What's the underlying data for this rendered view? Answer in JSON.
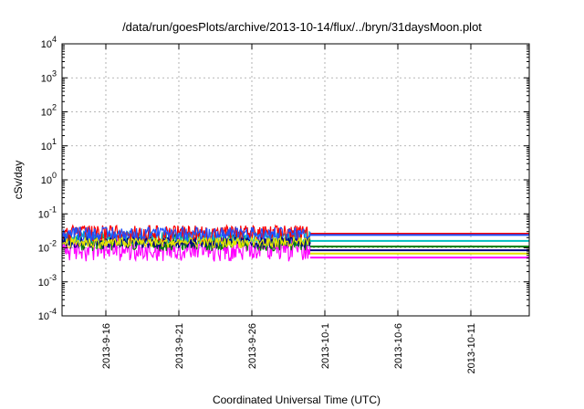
{
  "chart_data": {
    "type": "line",
    "title": "/data/run/goesPlots/archive/2013-10-14/flux/../bryn/31daysMoon.plot",
    "xlabel": "Coordinated Universal Time (UTC)",
    "ylabel": "cSv/day",
    "x_range": [
      "2013-09-13",
      "2013-10-15"
    ],
    "y_scale": "log",
    "ylim": [
      0.0001,
      10000
    ],
    "grid": true,
    "x_ticks": [
      {
        "date": "2013-09-16",
        "label": "2013-9-16"
      },
      {
        "date": "2013-09-21",
        "label": "2013-9-21"
      },
      {
        "date": "2013-09-26",
        "label": "2013-9-26"
      },
      {
        "date": "2013-10-01",
        "label": "2013-10-1"
      },
      {
        "date": "2013-10-06",
        "label": "2013-10-6"
      },
      {
        "date": "2013-10-11",
        "label": "2013-10-11"
      }
    ],
    "y_ticks": [
      {
        "value": 0.0001,
        "base": "10",
        "exp": "-4"
      },
      {
        "value": 0.001,
        "base": "10",
        "exp": "-3"
      },
      {
        "value": 0.01,
        "base": "10",
        "exp": "-2"
      },
      {
        "value": 0.1,
        "base": "10",
        "exp": "-1"
      },
      {
        "value": 1,
        "base": "10",
        "exp": "0"
      },
      {
        "value": 10,
        "base": "10",
        "exp": "1"
      },
      {
        "value": 100,
        "base": "10",
        "exp": "2"
      },
      {
        "value": 1000,
        "base": "10",
        "exp": "3"
      },
      {
        "value": 10000,
        "base": "10",
        "exp": "4"
      }
    ],
    "series": [
      {
        "color": "#ff00ff",
        "noisy_until": "2013-09-30",
        "noisy_range": [
          0.004,
          0.02
        ],
        "flat_value": 0.0052,
        "flat_from": "2013-09-30",
        "flat_to": "2013-10-15"
      },
      {
        "color": "#008000",
        "noisy_until": "2013-09-30",
        "noisy_range": [
          0.008,
          0.025
        ],
        "flat_value": 0.011,
        "flat_from": "2013-09-30",
        "flat_to": "2013-10-15"
      },
      {
        "color": "#00bfbf",
        "noisy_until": "2013-09-30",
        "noisy_range": [
          0.012,
          0.03
        ],
        "flat_value": 0.016,
        "flat_from": "2013-09-30",
        "flat_to": "2013-10-15"
      },
      {
        "color": "#ff0000",
        "noisy_until": "2013-09-30",
        "noisy_range": [
          0.015,
          0.045
        ],
        "flat_value": 0.026,
        "flat_from": "2013-09-30",
        "flat_to": "2013-10-15"
      },
      {
        "color": "#1e50ff",
        "noisy_until": "2013-09-30",
        "noisy_range": [
          0.015,
          0.04
        ],
        "flat_value": 0.024,
        "flat_from": "2013-09-30",
        "flat_to": "2013-10-15"
      },
      {
        "color": "#000080",
        "noisy_until": "2013-09-30",
        "noisy_range": [
          0.01,
          0.02
        ],
        "flat_value": 0.0085,
        "flat_from": "2013-09-30",
        "flat_to": "2013-10-15"
      },
      {
        "color": "#e6e600",
        "noisy_until": "2013-09-30",
        "noisy_range": [
          0.01,
          0.02
        ],
        "flat_value": 0.0068,
        "flat_from": "2013-09-30",
        "flat_to": "2013-10-15"
      }
    ]
  }
}
